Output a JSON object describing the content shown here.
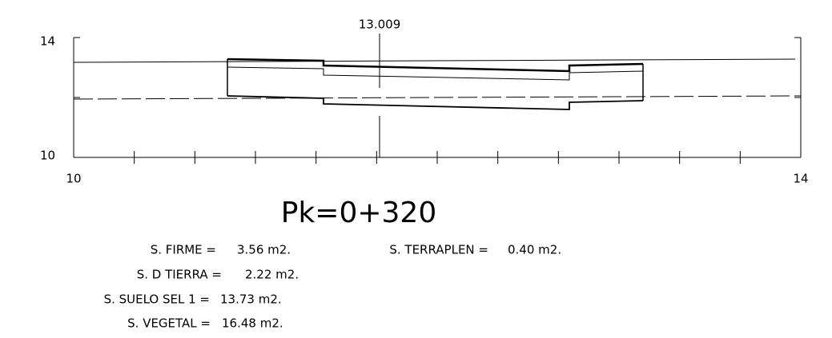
{
  "axes": {
    "y_top": "14",
    "y_bottom": "10",
    "x_left": "10",
    "x_right": "14"
  },
  "marker": "13.009",
  "title": "Pk=0+320",
  "areas": [
    {
      "label": "S. FIRME =",
      "value": "3.56 m2."
    },
    {
      "label": "S. D TIERRA =",
      "value": "2.22 m2."
    },
    {
      "label": "S. SUELO SEL 1 =",
      "value": "13.73 m2."
    },
    {
      "label": "S. VEGETAL =",
      "value": "16.48 m2."
    },
    {
      "label": "S. TERRAPLEN =",
      "value": "0.40 m2."
    }
  ]
}
